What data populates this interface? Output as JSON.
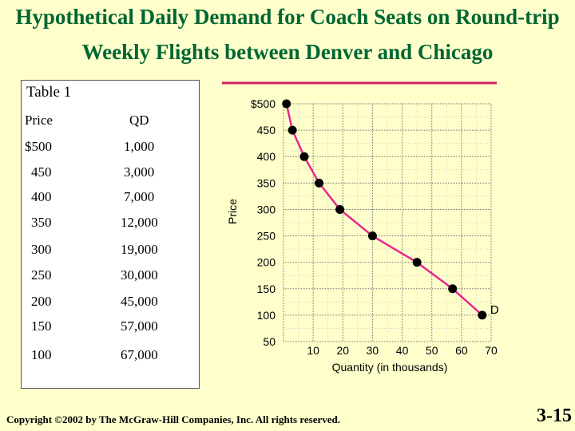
{
  "title_line1": "Hypothetical Daily Demand for Coach Seats on Round-trip",
  "title_line2": "Weekly Flights between Denver and Chicago",
  "table": {
    "caption": "Table 1",
    "headers": [
      "Price",
      "QD"
    ],
    "rows": [
      [
        "$500",
        "1,000"
      ],
      [
        "450",
        "3,000"
      ],
      [
        "400",
        "7,000"
      ],
      [
        "350",
        "12,000"
      ],
      [
        "300",
        "19,000"
      ],
      [
        "250",
        "30,000"
      ],
      [
        "200",
        "45,000"
      ],
      [
        "150",
        "57,000"
      ],
      [
        "100",
        "67,000"
      ]
    ]
  },
  "chart_data": {
    "type": "line",
    "title": "",
    "xlabel": "Quantity (in thousands)",
    "ylabel": "Price",
    "x": [
      1,
      3,
      7,
      12,
      19,
      30,
      45,
      57,
      67
    ],
    "series": [
      {
        "name": "D",
        "values": [
          500,
          450,
          400,
          350,
          300,
          250,
          200,
          150,
          100
        ]
      }
    ],
    "xlim": [
      0,
      70
    ],
    "ylim": [
      50,
      500
    ],
    "x_ticks": [
      "10",
      "20",
      "30",
      "40",
      "50",
      "60",
      "70"
    ],
    "y_ticks": [
      "$500",
      "450",
      "400",
      "350",
      "300",
      "250",
      "200",
      "150",
      "100",
      "50"
    ],
    "grid": true,
    "colors": {
      "curve": "#e8288f",
      "points": "#000000",
      "accent_line": "#d62060"
    }
  },
  "footer": {
    "copyright": "Copyright ©2002 by The McGraw-Hill Companies, Inc. All rights reserved.",
    "page_number": "3-15"
  }
}
